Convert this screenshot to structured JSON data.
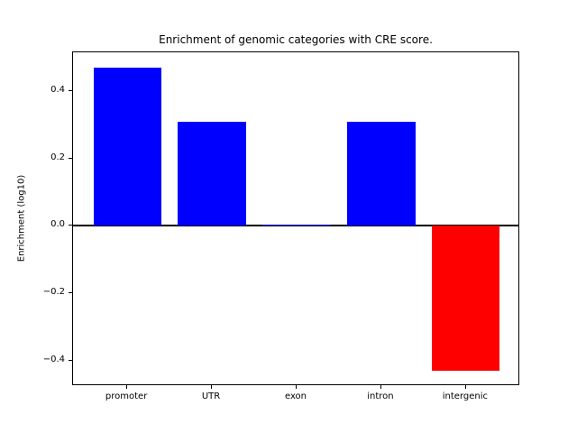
{
  "chart_data": {
    "type": "bar",
    "title": "Enrichment of genomic categories with CRE score.",
    "xlabel": "",
    "ylabel": "Enrichment (log10)",
    "categories": [
      "promoter",
      "UTR",
      "exon",
      "intron",
      "intergenic"
    ],
    "values": [
      0.47,
      0.31,
      0.005,
      0.31,
      -0.43
    ],
    "bar_colors": [
      "#0000ff",
      "#0000ff",
      "#0000ff",
      "#0000ff",
      "#ff0000"
    ],
    "positive_color": "#0000ff",
    "negative_color": "#ff0000",
    "ylim": [
      -0.475,
      0.515
    ],
    "yticks": [
      -0.4,
      -0.2,
      0.0,
      0.2,
      0.4
    ],
    "grid": false,
    "legend": false,
    "zero_line": true
  }
}
